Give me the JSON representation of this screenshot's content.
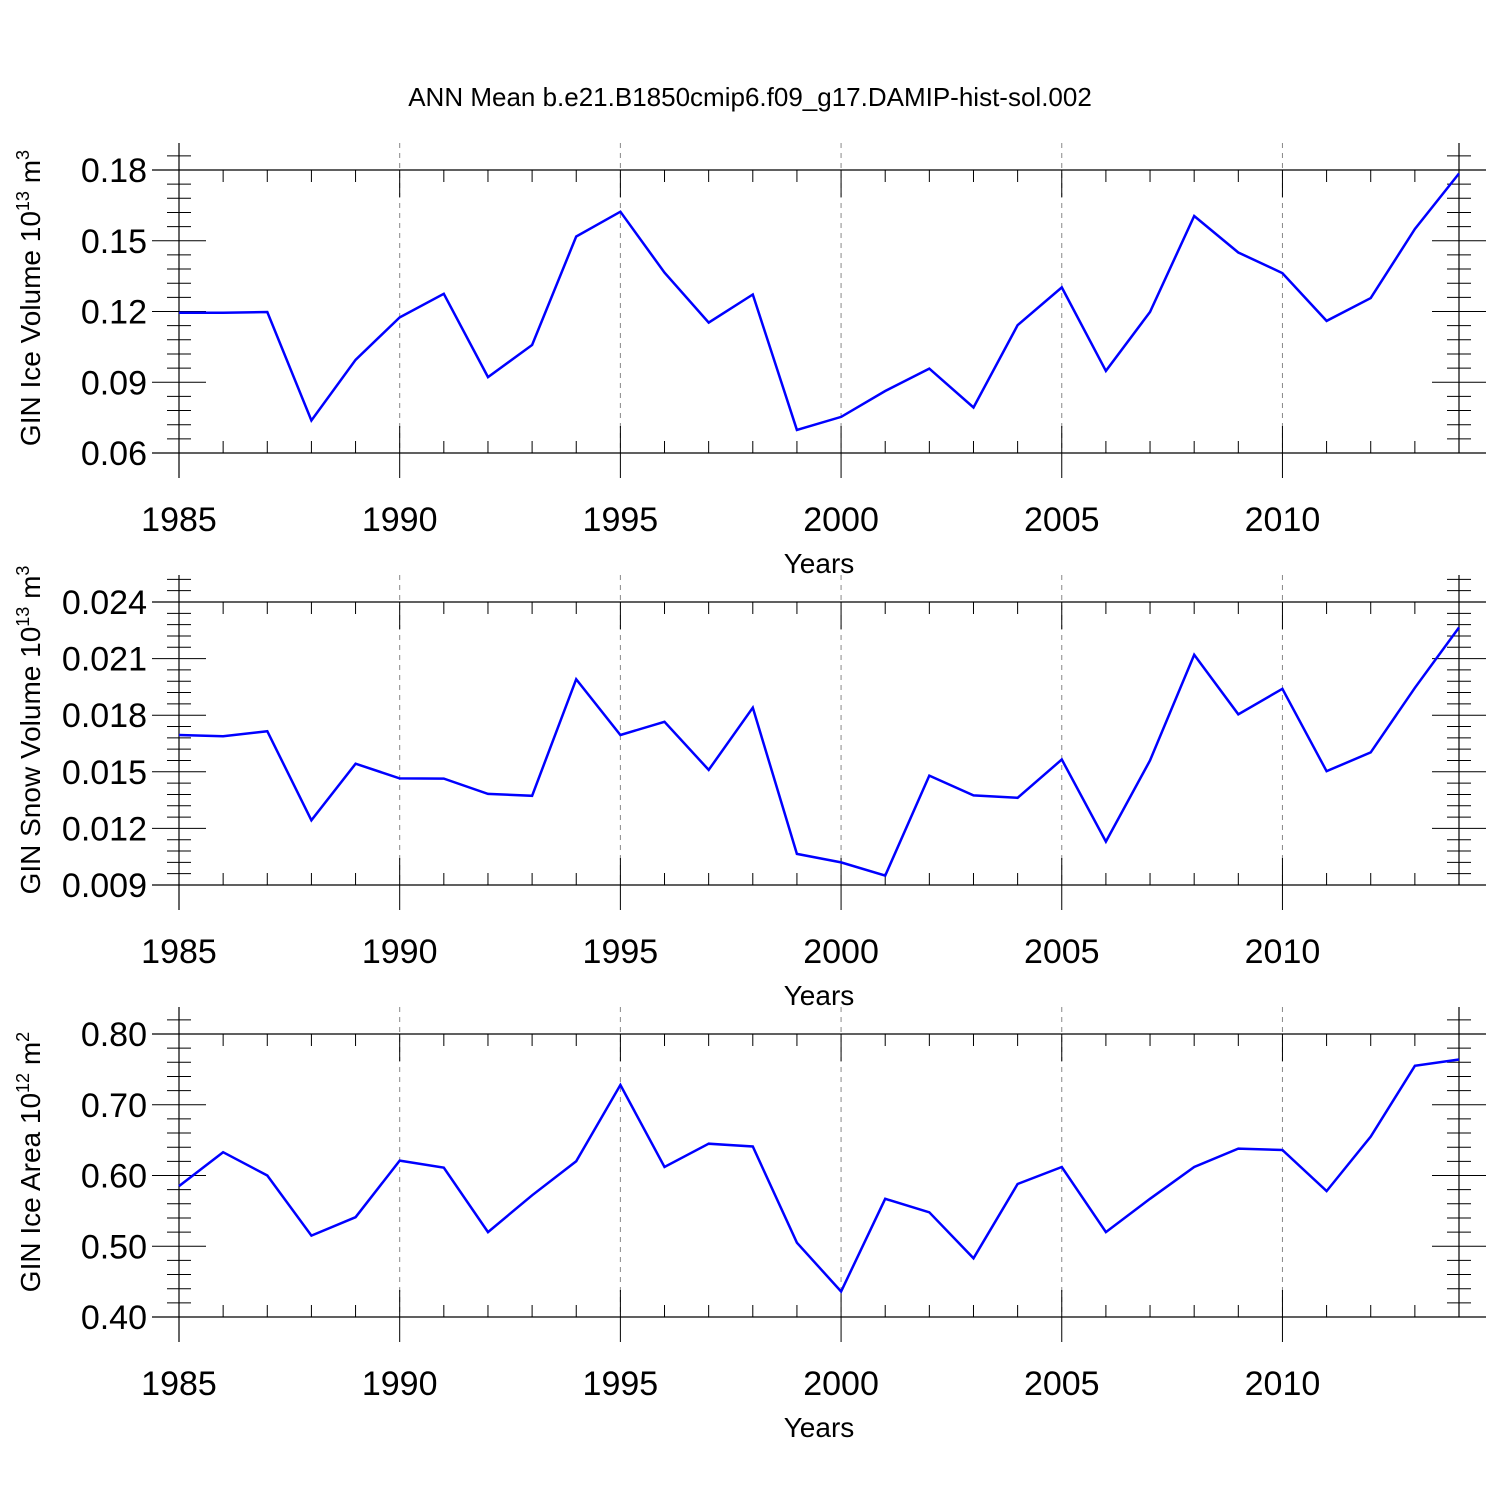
{
  "figure_title": "ANN Mean b.e21.B1850cmip6.f09_g17.DAMIP-hist-sol.002",
  "line_color": "#0000ff",
  "chart_data": [
    {
      "type": "line",
      "id": "ice-volume",
      "ylabel": {
        "prefix": "GIN Ice Volume 10",
        "exp1": "13",
        "unit": " m",
        "exp2": "3"
      },
      "xlabel": "Years",
      "xlim": [
        1985,
        2014
      ],
      "ylim": [
        0.06,
        0.18
      ],
      "xticks": [
        "1985",
        "1990",
        "1995",
        "2000",
        "2005",
        "2010"
      ],
      "yticks": [
        "0.06",
        "0.09",
        "0.12",
        "0.15",
        "0.18"
      ],
      "grid": "vertical-dashed",
      "x": [
        1985,
        1986,
        1987,
        1988,
        1989,
        1990,
        1991,
        1992,
        1993,
        1994,
        1995,
        1996,
        1997,
        1998,
        1999,
        2000,
        2001,
        2002,
        2003,
        2004,
        2005,
        2006,
        2007,
        2008,
        2009,
        2010,
        2011,
        2012,
        2013,
        2014
      ],
      "values": [
        0.1195,
        0.1195,
        0.1198,
        0.0738,
        0.0995,
        0.1175,
        0.1275,
        0.0922,
        0.1058,
        0.1518,
        0.1623,
        0.1365,
        0.1153,
        0.1272,
        0.0698,
        0.0753,
        0.0863,
        0.0958,
        0.0793,
        0.1142,
        0.1302,
        0.0948,
        0.1198,
        0.1605,
        0.145,
        0.1363,
        0.116,
        0.1257,
        0.155,
        0.1785
      ]
    },
    {
      "type": "line",
      "id": "snow-volume",
      "ylabel": {
        "prefix": "GIN Snow Volume 10",
        "exp1": "13",
        "unit": " m",
        "exp2": "3"
      },
      "xlabel": "Years",
      "xlim": [
        1985,
        2014
      ],
      "ylim": [
        0.009,
        0.024
      ],
      "xticks": [
        "1985",
        "1990",
        "1995",
        "2000",
        "2005",
        "2010"
      ],
      "yticks": [
        "0.009",
        "0.012",
        "0.015",
        "0.018",
        "0.021",
        "0.024"
      ],
      "grid": "vertical-dashed",
      "x": [
        1985,
        1986,
        1987,
        1988,
        1989,
        1990,
        1991,
        1992,
        1993,
        1994,
        1995,
        1996,
        1997,
        1998,
        1999,
        2000,
        2001,
        2002,
        2003,
        2004,
        2005,
        2006,
        2007,
        2008,
        2009,
        2010,
        2011,
        2012,
        2013,
        2014
      ],
      "values": [
        0.01695,
        0.01688,
        0.01715,
        0.01243,
        0.01543,
        0.01465,
        0.01464,
        0.01383,
        0.01373,
        0.01991,
        0.01695,
        0.01765,
        0.0151,
        0.0184,
        0.01065,
        0.0102,
        0.0095,
        0.0148,
        0.01375,
        0.01362,
        0.01565,
        0.0113,
        0.0156,
        0.0212,
        0.01805,
        0.0194,
        0.01503,
        0.01603,
        0.01945,
        0.02265
      ]
    },
    {
      "type": "line",
      "id": "ice-area",
      "ylabel": {
        "prefix": "GIN Ice Area 10",
        "exp1": "12",
        "unit": " m",
        "exp2": "2"
      },
      "xlabel": "Years",
      "xlim": [
        1985,
        2014
      ],
      "ylim": [
        0.4,
        0.8
      ],
      "xticks": [
        "1985",
        "1990",
        "1995",
        "2000",
        "2005",
        "2010"
      ],
      "yticks": [
        "0.40",
        "0.50",
        "0.60",
        "0.70",
        "0.80"
      ],
      "grid": "vertical-dashed",
      "x": [
        1985,
        1986,
        1987,
        1988,
        1989,
        1990,
        1991,
        1992,
        1993,
        1994,
        1995,
        1996,
        1997,
        1998,
        1999,
        2000,
        2001,
        2002,
        2003,
        2004,
        2005,
        2006,
        2007,
        2008,
        2009,
        2010,
        2011,
        2012,
        2013,
        2014
      ],
      "values": [
        0.585,
        0.633,
        0.6,
        0.515,
        0.541,
        0.621,
        0.611,
        0.52,
        0.572,
        0.62,
        0.728,
        0.612,
        0.645,
        0.641,
        0.505,
        0.436,
        0.567,
        0.548,
        0.483,
        0.588,
        0.612,
        0.52,
        0.567,
        0.612,
        0.638,
        0.636,
        0.578,
        0.655,
        0.755,
        0.764
      ]
    }
  ]
}
